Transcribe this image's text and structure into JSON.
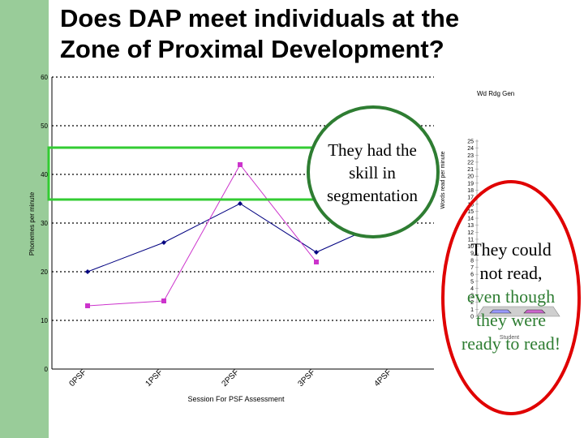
{
  "slide": {
    "title_line1": "Does DAP meet individuals at the",
    "title_line2": "Zone of Proximal Development?"
  },
  "chart_data": [
    {
      "type": "line",
      "title": "",
      "xlabel": "Session For PSF Assessment",
      "ylabel": "Phonemes per minute",
      "categories": [
        "0PSF",
        "1PSF",
        "2PSF",
        "3PSF",
        "4PSF"
      ],
      "ylim": [
        0,
        60
      ],
      "yticks": [
        0,
        10,
        20,
        30,
        40,
        50,
        60
      ],
      "series": [
        {
          "name": "",
          "color": "#000080",
          "marker": "diamond",
          "values": [
            20,
            26,
            34,
            24,
            31
          ]
        },
        {
          "name": "",
          "color": "#cc33cc",
          "marker": "square",
          "values": [
            13,
            14,
            42,
            22,
            null
          ]
        }
      ],
      "grid": "dashed horizontal",
      "annotations": [
        "Wd Rdg Gen"
      ]
    },
    {
      "type": "bar",
      "ylabel": "Words read per minute",
      "xlabel": "Student",
      "ylim": [
        0,
        25
      ],
      "yticks": [
        "25",
        "24",
        "23",
        "22",
        "21",
        "20",
        "19",
        "18",
        "17",
        "16",
        "15",
        "14",
        "13",
        "12",
        "11",
        "10",
        "9",
        "8",
        "7",
        "6",
        "5",
        "4",
        "3",
        "2",
        "1",
        "0"
      ],
      "categories": [
        "",
        ""
      ],
      "series": [
        {
          "name": "",
          "color": "#9999ff",
          "values": [
            0,
            0
          ]
        },
        {
          "name": "",
          "color": "#cc66cc",
          "values": [
            0,
            0
          ]
        }
      ]
    }
  ],
  "callouts": {
    "green_box_color": "#33cc33",
    "green_circle_color": "#2e7d32",
    "green_text": "They had the skill in segmentation",
    "red_ellipse_color": "#e00000",
    "red_line1": "They could",
    "red_line2": "not read,",
    "red_line3": "even though",
    "red_line4": "they were",
    "red_line5": "ready to read!"
  }
}
